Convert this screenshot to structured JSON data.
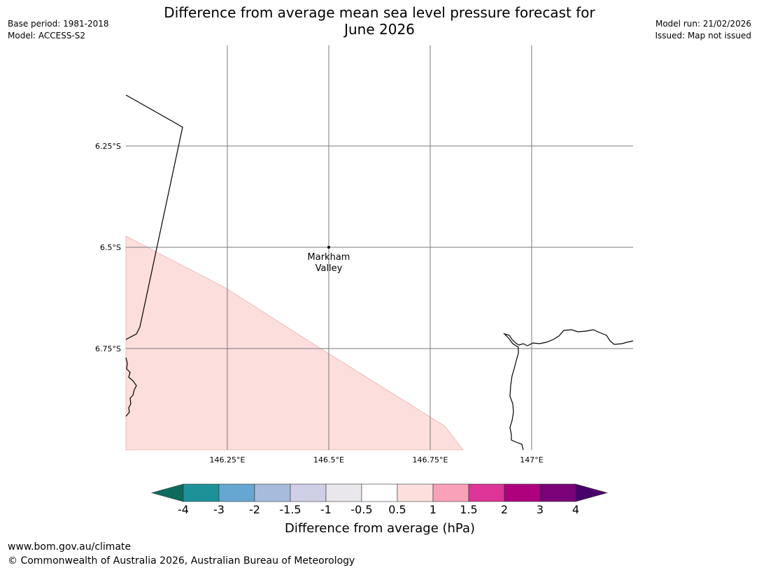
{
  "title": {
    "line1": "Difference from average mean sea level pressure forecast for",
    "line2": "June 2026"
  },
  "meta_left": {
    "base_period": "Base period: 1981-2018",
    "model": "Model: ACCESS-S2"
  },
  "meta_right": {
    "model_run": "Model run: 21/02/2026",
    "issued": "Issued: Map not issued"
  },
  "map": {
    "lat_labels": [
      "6.25°S",
      "6.5°S",
      "6.75°S"
    ],
    "lon_labels": [
      "146.25°E",
      "146.5°E",
      "146.75°E",
      "147°E"
    ],
    "place": {
      "line1": "Markham",
      "line2": "Valley"
    },
    "shaded_category": "0.5 to 1",
    "colors": {
      "shade": "#fcdedd",
      "shade_edge": "#e8b5b2",
      "grid": "#7a7a7a",
      "coast": "#000000"
    }
  },
  "colorbar": {
    "ticks": [
      "-4",
      "-3",
      "-2",
      "-1.5",
      "-1",
      "-0.5",
      "0.5",
      "1",
      "1.5",
      "2",
      "3",
      "4"
    ],
    "colors": [
      "#0d6b5e",
      "#1d9098",
      "#66a7d1",
      "#a7bcdc",
      "#cfcfe6",
      "#e9e7ec",
      "#ffffff",
      "#fde0de",
      "#f9a1b8",
      "#dd3497",
      "#ae017e",
      "#7a0177",
      "#49006a"
    ],
    "label": "Difference from average (hPa)"
  },
  "footer": {
    "url": "www.bom.gov.au/climate",
    "copyright": "© Commonwealth of Australia 2026, Australian Bureau of Meteorology"
  }
}
